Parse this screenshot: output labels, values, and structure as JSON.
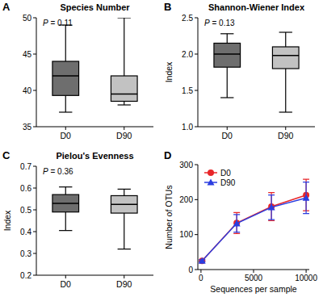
{
  "chart_data": [
    {
      "type": "box",
      "label": "A",
      "title": "Species Number",
      "annotation": "P = 0.11",
      "categories": [
        "D0",
        "D90"
      ],
      "colors": [
        "#6e6e6e",
        "#c2c2c2"
      ],
      "min": [
        37,
        38
      ],
      "q1": [
        39.3,
        38.5
      ],
      "median": [
        42,
        39.5
      ],
      "q3": [
        44,
        42
      ],
      "max": [
        49,
        50
      ],
      "ylim": [
        35,
        50
      ],
      "yticks": [
        35,
        40,
        45,
        50
      ],
      "grid": false
    },
    {
      "type": "box",
      "label": "B",
      "title": "Shannon-Wiener Index",
      "annotation": "P = 0.13",
      "y_label": "Index",
      "categories": [
        "D0",
        "D90"
      ],
      "colors": [
        "#6e6e6e",
        "#c2c2c2"
      ],
      "min": [
        1.4,
        1.2
      ],
      "q1": [
        1.82,
        1.8
      ],
      "median": [
        2.0,
        1.98
      ],
      "q3": [
        2.15,
        2.1
      ],
      "max": [
        2.28,
        2.3
      ],
      "ylim": [
        1.0,
        2.5
      ],
      "yticks": [
        {
          "value": 1,
          "label": "1.0"
        },
        1.5,
        {
          "value": 2,
          "label": "2.0"
        },
        2.5
      ],
      "grid": false
    },
    {
      "type": "box",
      "label": "C",
      "title": "Pielou's Evenness",
      "annotation": "P = 0.36",
      "y_label": "Index",
      "categories": [
        "D0",
        "D90"
      ],
      "colors": [
        "#6e6e6e",
        "#c2c2c2"
      ],
      "min": [
        0.405,
        0.32
      ],
      "q1": [
        0.49,
        0.485
      ],
      "median": [
        0.53,
        0.525
      ],
      "q3": [
        0.57,
        0.565
      ],
      "max": [
        0.605,
        0.595
      ],
      "ylim": [
        0.2,
        0.7
      ],
      "yticks": [
        0.2,
        0.3,
        0.4,
        0.5,
        0.6,
        0.7
      ],
      "grid": false
    },
    {
      "type": "line",
      "label": "D",
      "x_label": "Sequences per sample",
      "y_label": "Number of OTUs",
      "x": [
        100,
        3400,
        6700,
        10000
      ],
      "series": [
        {
          "name": "D0",
          "color": "#e8262a",
          "marker": "circle",
          "line_style": "solid",
          "values": [
            25,
            133,
            180,
            213
          ],
          "errors": [
            3,
            30,
            40,
            45
          ]
        },
        {
          "name": "D90",
          "color": "#2b3ee0",
          "marker": "triangle",
          "line_style": "solid",
          "values": [
            25,
            132,
            178,
            205
          ],
          "errors": [
            3,
            25,
            35,
            45
          ]
        }
      ],
      "xlim": [
        -300,
        10300
      ],
      "xticks": [
        0,
        5000,
        10000
      ],
      "ylim": [
        0,
        300
      ],
      "yticks": [
        0,
        100,
        200,
        300
      ],
      "legend": "upper left",
      "grid": false
    }
  ]
}
